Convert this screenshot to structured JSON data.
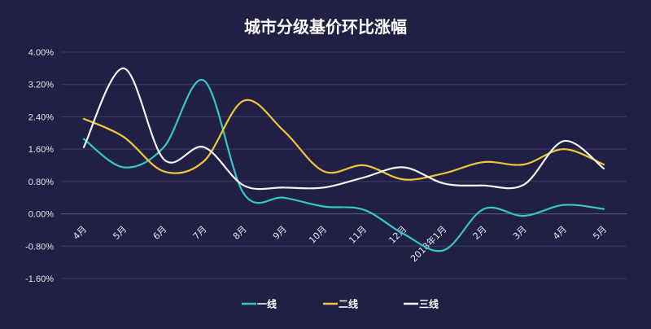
{
  "chart_data": {
    "type": "line",
    "title": "城市分级基价环比涨幅",
    "xlabel": "",
    "ylabel": "",
    "ylim": [
      -1.6,
      4.0
    ],
    "yticks": [
      "4.00%",
      "3.20%",
      "2.40%",
      "1.60%",
      "0.80%",
      "0.00%",
      "-0.80%",
      "-1.60%"
    ],
    "ytick_values": [
      4.0,
      3.2,
      2.4,
      1.6,
      0.8,
      0.0,
      -0.8,
      -1.6
    ],
    "categories": [
      "4月",
      "5月",
      "6月",
      "7月",
      "8月",
      "9月",
      "10月",
      "11月",
      "12月",
      "2018年1月",
      "2月",
      "3月",
      "4月",
      "5月"
    ],
    "grid": true,
    "legend_position": "bottom",
    "series": [
      {
        "name": "一线",
        "color": "#35c6c7",
        "values": [
          1.85,
          1.15,
          1.65,
          3.3,
          0.5,
          0.4,
          0.18,
          0.1,
          -0.5,
          -0.9,
          0.12,
          -0.05,
          0.22,
          0.12
        ]
      },
      {
        "name": "二线",
        "color": "#f2c43c",
        "values": [
          2.35,
          1.9,
          1.05,
          1.3,
          2.8,
          2.05,
          1.05,
          1.2,
          0.85,
          1.0,
          1.28,
          1.22,
          1.6,
          1.22
        ]
      },
      {
        "name": "三线",
        "color": "#f4f4f6",
        "values": [
          1.65,
          3.6,
          1.35,
          1.65,
          0.7,
          0.65,
          0.65,
          0.9,
          1.15,
          0.75,
          0.7,
          0.72,
          1.8,
          1.12
        ]
      }
    ]
  }
}
